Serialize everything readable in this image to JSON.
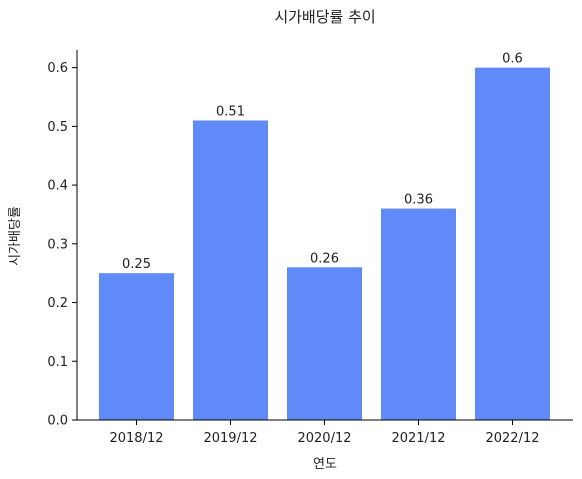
{
  "chart_data": {
    "type": "bar",
    "title": "시가배당률 추이",
    "xlabel": "연도",
    "ylabel": "시가배당률",
    "categories": [
      "2018/12",
      "2019/12",
      "2020/12",
      "2021/12",
      "2022/12"
    ],
    "values": [
      0.25,
      0.51,
      0.26,
      0.36,
      0.6
    ],
    "data_labels": [
      "0.25",
      "0.51",
      "0.26",
      "0.36",
      "0.6"
    ],
    "ylim": [
      0,
      0.63
    ],
    "yticks": [
      "0.0",
      "0.1",
      "0.2",
      "0.3",
      "0.4",
      "0.5",
      "0.6"
    ],
    "grid": false,
    "bar_color": "#5f8af7"
  }
}
